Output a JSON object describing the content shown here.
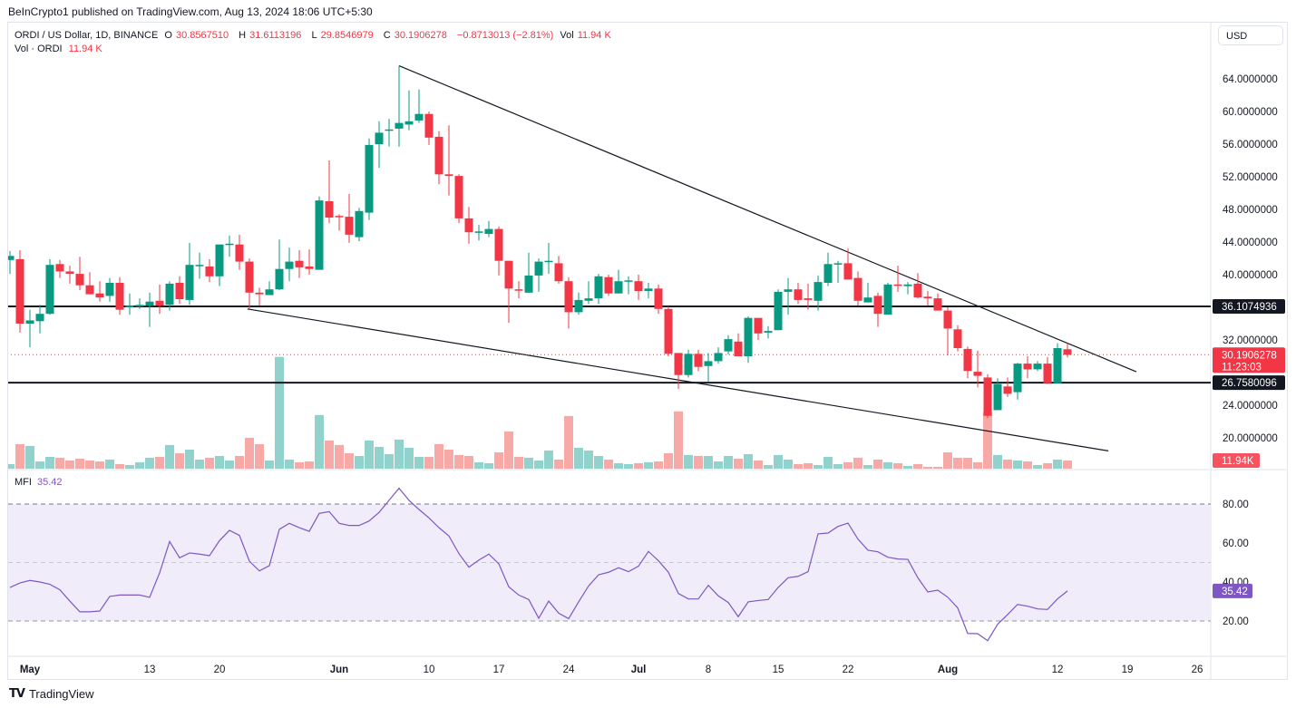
{
  "publisher": "BeInCrypto1 published on TradingView.com, Aug 13, 2024 18:06 UTC+5:30",
  "legend": {
    "symbol": "ORDI / US Dollar, 1D, BINANCE",
    "o_label": "O",
    "o": "30.8567510",
    "h_label": "H",
    "h": "31.6113196",
    "l_label": "L",
    "l": "29.8546979",
    "c_label": "C",
    "c": "30.1906278",
    "change": "−0.8713013 (−2.81%)",
    "vol_label": "Vol",
    "vol": "11.94 K",
    "vol_series_label": "Vol · ORDI",
    "vol_series_value": "11.94 K"
  },
  "currency_button": "USD",
  "mfi_legend": {
    "label": "MFI",
    "value": "35.42"
  },
  "footer": {
    "logo_text": "TradingView"
  },
  "colors": {
    "up": "#089981",
    "down": "#f23645",
    "vol_up": "#92d2cc",
    "vol_down": "#f7a9a7",
    "mfi": "#7e57c2",
    "mfi_band": "#f0ecf9",
    "tag_dark": "#131722"
  },
  "chart_data": [
    {
      "type": "candlestick",
      "title": "ORDI / US Dollar, 1D, BINANCE",
      "x_start": "Apr 29, 2024",
      "x_labels": [
        {
          "index": 2,
          "text": "May",
          "bold": true
        },
        {
          "index": 14,
          "text": "13"
        },
        {
          "index": 21,
          "text": "20"
        },
        {
          "index": 33,
          "text": "Jun",
          "bold": true
        },
        {
          "index": 42,
          "text": "10"
        },
        {
          "index": 49,
          "text": "17"
        },
        {
          "index": 56,
          "text": "24"
        },
        {
          "index": 63,
          "text": "Jul",
          "bold": true
        },
        {
          "index": 70,
          "text": "8"
        },
        {
          "index": 77,
          "text": "15"
        },
        {
          "index": 84,
          "text": "22"
        },
        {
          "index": 94,
          "text": "Aug",
          "bold": true
        },
        {
          "index": 105,
          "text": "12"
        },
        {
          "index": 112,
          "text": "19"
        },
        {
          "index": 119,
          "text": "26"
        }
      ],
      "y_ticks": [
        "64.0000000",
        "60.0000000",
        "56.0000000",
        "52.0000000",
        "48.0000000",
        "44.0000000",
        "40.0000000",
        "32.0000000",
        "24.0000000",
        "20.0000000"
      ],
      "y_tick_values": [
        64,
        60,
        56,
        52,
        48,
        44,
        40,
        32,
        24,
        20
      ],
      "ylim": [
        17.5,
        66
      ],
      "ohlc": [
        [
          41.8,
          42.9,
          40.1,
          42.3
        ],
        [
          41.9,
          43.0,
          32.9,
          34.0
        ],
        [
          34.0,
          35.7,
          31.1,
          34.4
        ],
        [
          34.3,
          36.3,
          32.8,
          35.2
        ],
        [
          35.2,
          41.9,
          35.1,
          41.2
        ],
        [
          41.3,
          41.8,
          39.6,
          40.4
        ],
        [
          40.4,
          41.1,
          38.9,
          40.1
        ],
        [
          40.1,
          42.2,
          38.1,
          38.7
        ],
        [
          38.7,
          40.3,
          37.6,
          37.6
        ],
        [
          37.7,
          39.2,
          36.7,
          37.2
        ],
        [
          37.4,
          39.6,
          36.7,
          39.0
        ],
        [
          39.0,
          39.7,
          35.1,
          35.7
        ],
        [
          36.0,
          37.7,
          35.1,
          36.2
        ],
        [
          36.1,
          37.1,
          35.8,
          36.3
        ],
        [
          36.2,
          37.8,
          33.6,
          36.7
        ],
        [
          36.8,
          38.8,
          35.2,
          36.2
        ],
        [
          36.3,
          39.2,
          35.6,
          38.9
        ],
        [
          39.0,
          39.8,
          36.4,
          37.0
        ],
        [
          36.9,
          43.9,
          36.3,
          41.2
        ],
        [
          41.1,
          42.7,
          39.5,
          41.2
        ],
        [
          41.0,
          41.9,
          39.1,
          39.8
        ],
        [
          39.8,
          43.7,
          38.6,
          43.7
        ],
        [
          43.7,
          44.8,
          42.2,
          43.8
        ],
        [
          43.7,
          44.9,
          40.6,
          41.6
        ],
        [
          41.6,
          42.0,
          35.8,
          37.8
        ],
        [
          37.8,
          38.4,
          36.2,
          37.6
        ],
        [
          37.5,
          39.2,
          37.5,
          38.2
        ],
        [
          38.2,
          44.3,
          38.1,
          40.7
        ],
        [
          40.7,
          43.3,
          39.2,
          41.6
        ],
        [
          41.7,
          43.0,
          39.6,
          40.9
        ],
        [
          41.0,
          43.1,
          40.0,
          40.7
        ],
        [
          40.6,
          49.6,
          40.6,
          49.1
        ],
        [
          49.0,
          54.0,
          46.3,
          47.0
        ],
        [
          47.2,
          47.4,
          45.4,
          47.1
        ],
        [
          47.1,
          49.9,
          43.9,
          44.9
        ],
        [
          44.6,
          48.2,
          44.1,
          47.8
        ],
        [
          47.6,
          56.7,
          46.7,
          55.9
        ],
        [
          56.0,
          58.8,
          53.1,
          57.4
        ],
        [
          57.7,
          59.1,
          55.7,
          57.8
        ],
        [
          57.9,
          65.6,
          55.7,
          58.6
        ],
        [
          58.4,
          62.6,
          57.7,
          58.8
        ],
        [
          58.9,
          62.7,
          58.6,
          59.7
        ],
        [
          59.7,
          60.0,
          55.9,
          56.8
        ],
        [
          56.9,
          57.6,
          51.1,
          52.3
        ],
        [
          52.3,
          58.3,
          49.7,
          52.1
        ],
        [
          52.1,
          52.3,
          46.3,
          46.9
        ],
        [
          46.9,
          48.3,
          43.8,
          45.2
        ],
        [
          45.2,
          46.1,
          44.2,
          45.3
        ],
        [
          45.0,
          46.6,
          44.6,
          45.6
        ],
        [
          45.6,
          45.9,
          39.9,
          41.7
        ],
        [
          41.7,
          41.7,
          34.1,
          38.3
        ],
        [
          38.2,
          39.2,
          37.1,
          38.1
        ],
        [
          37.8,
          42.7,
          37.8,
          39.9
        ],
        [
          39.9,
          42.0,
          37.9,
          41.6
        ],
        [
          41.6,
          43.9,
          40.1,
          41.7
        ],
        [
          41.4,
          42.3,
          38.9,
          39.2
        ],
        [
          39.2,
          39.7,
          33.4,
          35.4
        ],
        [
          35.4,
          37.8,
          35.1,
          36.9
        ],
        [
          36.8,
          39.2,
          36.4,
          37.1
        ],
        [
          37.1,
          40.1,
          36.4,
          39.8
        ],
        [
          39.7,
          40.0,
          37.4,
          37.7
        ],
        [
          37.7,
          40.6,
          37.7,
          39.2
        ],
        [
          39.2,
          39.8,
          37.6,
          39.3
        ],
        [
          39.2,
          40.0,
          36.9,
          38.0
        ],
        [
          38.0,
          39.0,
          37.1,
          38.3
        ],
        [
          38.3,
          38.8,
          35.2,
          35.8
        ],
        [
          35.8,
          36.1,
          30.0,
          30.3
        ],
        [
          30.4,
          30.4,
          26.0,
          27.7
        ],
        [
          27.7,
          30.8,
          27.4,
          30.3
        ],
        [
          30.3,
          30.8,
          28.2,
          28.7
        ],
        [
          28.8,
          30.4,
          26.9,
          29.4
        ],
        [
          29.4,
          31.1,
          29.1,
          30.4
        ],
        [
          30.6,
          32.6,
          30.2,
          32.1
        ],
        [
          31.8,
          32.8,
          30.0,
          30.0
        ],
        [
          30.0,
          34.9,
          29.2,
          34.7
        ],
        [
          34.7,
          34.7,
          32.0,
          32.8
        ],
        [
          32.9,
          33.7,
          32.2,
          33.1
        ],
        [
          33.2,
          38.2,
          33.2,
          37.9
        ],
        [
          37.9,
          39.6,
          35.1,
          38.2
        ],
        [
          38.2,
          39.0,
          36.4,
          36.9
        ],
        [
          37.1,
          38.9,
          35.7,
          36.9
        ],
        [
          36.8,
          39.9,
          35.6,
          39.1
        ],
        [
          39.0,
          42.7,
          38.6,
          41.3
        ],
        [
          41.3,
          41.7,
          39.0,
          41.4
        ],
        [
          41.4,
          43.2,
          39.4,
          39.4
        ],
        [
          39.6,
          40.4,
          36.2,
          36.8
        ],
        [
          36.6,
          39.0,
          36.6,
          37.2
        ],
        [
          37.4,
          37.8,
          33.6,
          35.2
        ],
        [
          35.1,
          39.0,
          35.1,
          38.8
        ],
        [
          38.8,
          41.1,
          37.9,
          38.7
        ],
        [
          38.6,
          39.1,
          37.6,
          38.8
        ],
        [
          38.9,
          40.2,
          37.1,
          37.2
        ],
        [
          37.3,
          38.0,
          36.2,
          37.1
        ],
        [
          37.1,
          37.7,
          35.6,
          35.6
        ],
        [
          35.6,
          36.0,
          30.1,
          33.4
        ],
        [
          33.3,
          33.8,
          30.6,
          31.0
        ],
        [
          30.9,
          31.2,
          27.3,
          28.2
        ],
        [
          28.1,
          30.7,
          26.2,
          27.6
        ],
        [
          27.4,
          27.8,
          22.4,
          22.7
        ],
        [
          23.4,
          27.3,
          23.4,
          26.6
        ],
        [
          26.3,
          27.4,
          25.0,
          25.4
        ],
        [
          25.6,
          29.2,
          24.7,
          29.1
        ],
        [
          29.1,
          30.0,
          27.3,
          28.4
        ],
        [
          28.4,
          29.4,
          28.2,
          29.1
        ],
        [
          29.1,
          29.9,
          26.6,
          26.7
        ],
        [
          26.7,
          31.6,
          26.7,
          31.0
        ],
        [
          30.857,
          31.611,
          29.855,
          30.191
        ]
      ],
      "volume_k": [
        6.7,
        35.9,
        33.3,
        10.6,
        17.3,
        16.0,
        12.0,
        14.6,
        12.0,
        10.6,
        13.3,
        6.7,
        5.3,
        9.3,
        16.0,
        17.3,
        34.6,
        22.6,
        27.9,
        13.3,
        16.0,
        18.6,
        12.0,
        18.6,
        45.2,
        35.9,
        12.0,
        163.6,
        13.3,
        9.3,
        10.6,
        78.5,
        41.2,
        34.6,
        22.6,
        18.6,
        41.2,
        31.9,
        21.3,
        42.6,
        30.6,
        17.3,
        17.3,
        35.9,
        27.9,
        20.0,
        18.6,
        9.3,
        8.0,
        23.9,
        54.5,
        17.3,
        16.0,
        12.0,
        26.6,
        13.3,
        77.1,
        30.6,
        26.6,
        18.6,
        13.3,
        8.0,
        6.7,
        8.0,
        9.3,
        10.6,
        22.6,
        83.8,
        20.0,
        18.6,
        18.6,
        10.6,
        18.6,
        14.6,
        21.3,
        12.0,
        5.3,
        20.0,
        13.3,
        6.7,
        8.0,
        5.3,
        17.3,
        6.7,
        9.3,
        16.0,
        5.3,
        13.3,
        9.3,
        8.0,
        4.0,
        6.7,
        2.7,
        2.7,
        23.9,
        16.0,
        16.0,
        9.3,
        82.5,
        20.0,
        13.3,
        12.0,
        10.6,
        5.3,
        8.0,
        13.3,
        11.94
      ],
      "horizontal_levels": [
        {
          "value": 36.1074936,
          "label": "36.1074936"
        },
        {
          "value": 26.7580096,
          "label": "26.7580096"
        }
      ],
      "trendlines": [
        {
          "name": "upper-trendline",
          "from": [
            39,
            65.6
          ],
          "to": [
            112.9,
            28.1
          ]
        },
        {
          "name": "lower-trendline",
          "from": [
            23.8,
            35.8
          ],
          "to": [
            110.1,
            18.4
          ]
        }
      ],
      "last_price": {
        "value": 30.1906278,
        "label": "30.1906278",
        "countdown": "11:23:03"
      },
      "last_volume_label": "11.94K"
    },
    {
      "type": "line",
      "title": "MFI",
      "ylim": [
        5,
        92
      ],
      "y_ticks": [
        "80.00",
        "60.00",
        "40.00",
        "20.00"
      ],
      "y_tick_values": [
        80,
        60,
        40,
        20
      ],
      "bands": {
        "upper": 80,
        "middle": 50,
        "lower": 20
      },
      "values": [
        37.2,
        39.5,
        40.8,
        40.0,
        38.8,
        36.0,
        30.2,
        24.7,
        24.7,
        25.1,
        32.6,
        33.3,
        33.3,
        33.3,
        32.1,
        44.7,
        60.8,
        52.4,
        54.9,
        54.3,
        53.5,
        61.2,
        66.5,
        63.9,
        50.7,
        45.7,
        48.4,
        67.0,
        70.1,
        67.9,
        66.0,
        75.2,
        76.1,
        70.1,
        69.0,
        69.0,
        71.3,
        75.7,
        81.9,
        88.1,
        81.9,
        77.2,
        72.9,
        67.9,
        63.6,
        54.6,
        47.6,
        51.2,
        54.3,
        49.3,
        37.5,
        33.3,
        31.0,
        21.4,
        30.2,
        24.0,
        21.2,
        29.8,
        38.0,
        43.7,
        45.0,
        47.3,
        45.3,
        48.1,
        55.7,
        50.9,
        45.0,
        34.1,
        31.3,
        31.3,
        38.3,
        32.9,
        29.5,
        22.2,
        29.8,
        30.5,
        31.0,
        37.2,
        42.2,
        42.9,
        45.3,
        64.7,
        65.1,
        68.5,
        70.2,
        62.0,
        56.3,
        55.5,
        52.7,
        51.8,
        51.6,
        42.2,
        34.9,
        35.8,
        32.2,
        26.7,
        13.6,
        13.5,
        9.9,
        18.3,
        23.3,
        28.5,
        27.6,
        26.2,
        25.9,
        31.3,
        35.42
      ],
      "last_label": "35.42"
    }
  ]
}
